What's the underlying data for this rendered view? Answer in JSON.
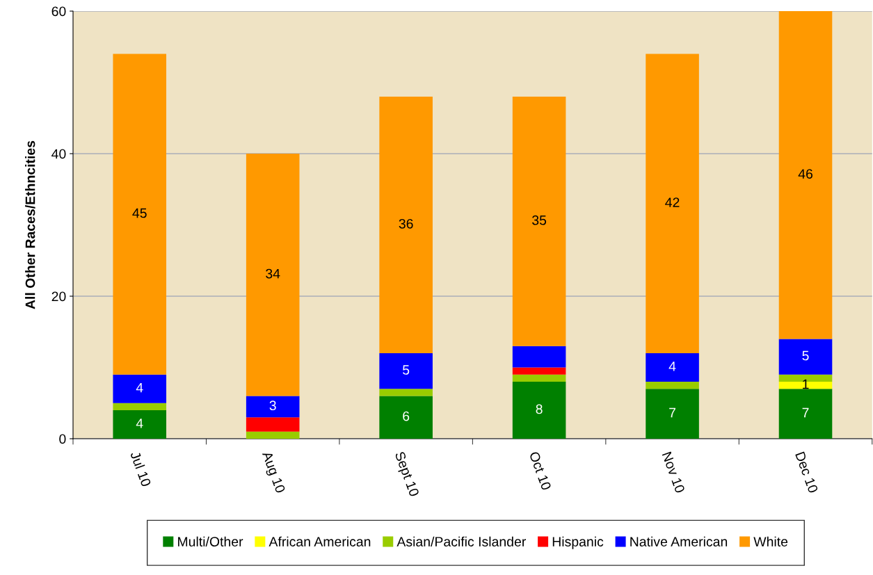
{
  "chart_data": {
    "type": "bar",
    "stacked": true,
    "ylabel": "All Other Races/Ethncities",
    "categories": [
      "Jul 10",
      "Aug 10",
      "Sept 10",
      "Oct 10",
      "Nov 10",
      "Dec 10"
    ],
    "series": [
      {
        "name": "Multi/Other",
        "color": "#008000",
        "values": [
          4,
          0,
          6,
          8,
          7,
          7
        ],
        "value_labels": [
          "4",
          null,
          "6",
          "8",
          "7",
          "7"
        ]
      },
      {
        "name": "African American",
        "color": "#ffff00",
        "values": [
          0,
          0,
          0,
          0,
          0,
          1
        ],
        "value_labels": [
          null,
          null,
          null,
          null,
          null,
          "1"
        ]
      },
      {
        "name": "Asian/Pacific Islander",
        "color": "#99cc00",
        "values": [
          1,
          1,
          1,
          1,
          1,
          1
        ],
        "value_labels": [
          null,
          null,
          null,
          null,
          null,
          null
        ]
      },
      {
        "name": "Hispanic",
        "color": "#ff0000",
        "values": [
          0,
          2,
          0,
          1,
          0,
          0
        ],
        "value_labels": [
          null,
          null,
          null,
          null,
          null,
          null
        ]
      },
      {
        "name": "Native American",
        "color": "#0000ff",
        "values": [
          4,
          3,
          5,
          3,
          4,
          5
        ],
        "value_labels": [
          "4",
          "3",
          "5",
          null,
          "4",
          "5"
        ]
      },
      {
        "name": "White",
        "color": "#ff9900",
        "values": [
          45,
          34,
          36,
          35,
          42,
          46
        ],
        "value_labels": [
          "45",
          "34",
          "36",
          "35",
          "42",
          "46"
        ]
      }
    ],
    "ylim": [
      0,
      60
    ],
    "yticks": [
      0,
      20,
      40,
      60
    ],
    "grid": "y",
    "legend": "bottom"
  }
}
